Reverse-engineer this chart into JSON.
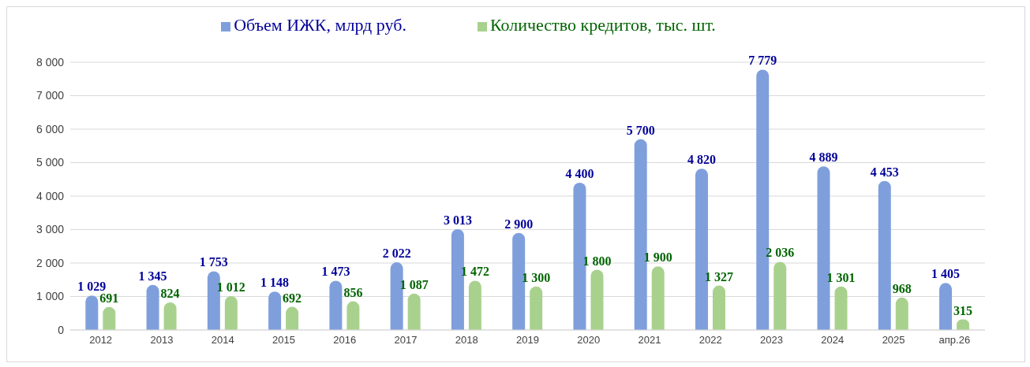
{
  "chart_data": {
    "type": "bar",
    "categories": [
      "2012",
      "2013",
      "2014",
      "2015",
      "2016",
      "2017",
      "2018",
      "2019",
      "2020",
      "2021",
      "2022",
      "2023",
      "2024",
      "2025",
      "апр.26"
    ],
    "series": [
      {
        "name": "Объем ИЖК, млрд руб.",
        "color": "#7f9fdc",
        "values": [
          1029,
          1345,
          1753,
          1148,
          1473,
          2022,
          3013,
          2900,
          4400,
          5700,
          4820,
          7779,
          4889,
          4453,
          1405
        ],
        "value_labels": [
          "1 029",
          "1 345",
          "1 753",
          "1 148",
          "1 473",
          "2 022",
          "3 013",
          "2 900",
          "4 400",
          "5 700",
          "4 820",
          "7 779",
          "4 889",
          "4 453",
          "1 405"
        ]
      },
      {
        "name": "Количество кредитов, тыс. шт.",
        "color": "#a9d18e",
        "values": [
          691,
          824,
          1012,
          692,
          856,
          1087,
          1472,
          1300,
          1800,
          1900,
          1327,
          2036,
          1301,
          968,
          315
        ],
        "value_labels": [
          "691",
          "824",
          "1 012",
          "692",
          "856",
          "1 087",
          "1 472",
          "1 300",
          "1 800",
          "1 900",
          "1 327",
          "2 036",
          "1 301",
          "968",
          "315"
        ]
      }
    ],
    "ylim": [
      0,
      8000
    ],
    "yticks": [
      0,
      {
        "value": 1000,
        "label": "1 000"
      },
      {
        "value": 2000,
        "label": "2 000"
      },
      {
        "value": 3000,
        "label": "3 000"
      },
      {
        "value": 4000,
        "label": "4 000"
      },
      {
        "value": 5000,
        "label": "5 000"
      },
      {
        "value": 6000,
        "label": "6 000"
      },
      {
        "value": 7000,
        "label": "7 000"
      },
      {
        "value": 8000,
        "label": "8 000"
      }
    ],
    "grid": "y",
    "legend": "top"
  }
}
